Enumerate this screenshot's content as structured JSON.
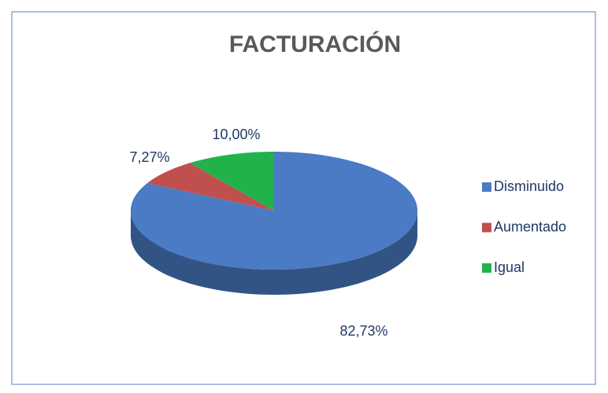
{
  "chart_data": {
    "type": "pie",
    "title": "FACTURACIÓN",
    "categories": [
      "Disminuido",
      "Aumentado",
      "Igual"
    ],
    "values": [
      82.73,
      7.27,
      10.0
    ],
    "value_labels": [
      "82,73%",
      "7,27%",
      "10,00%"
    ],
    "colors": [
      "#4a7bc4",
      "#c0504d",
      "#22b24c"
    ],
    "legend": "right"
  }
}
